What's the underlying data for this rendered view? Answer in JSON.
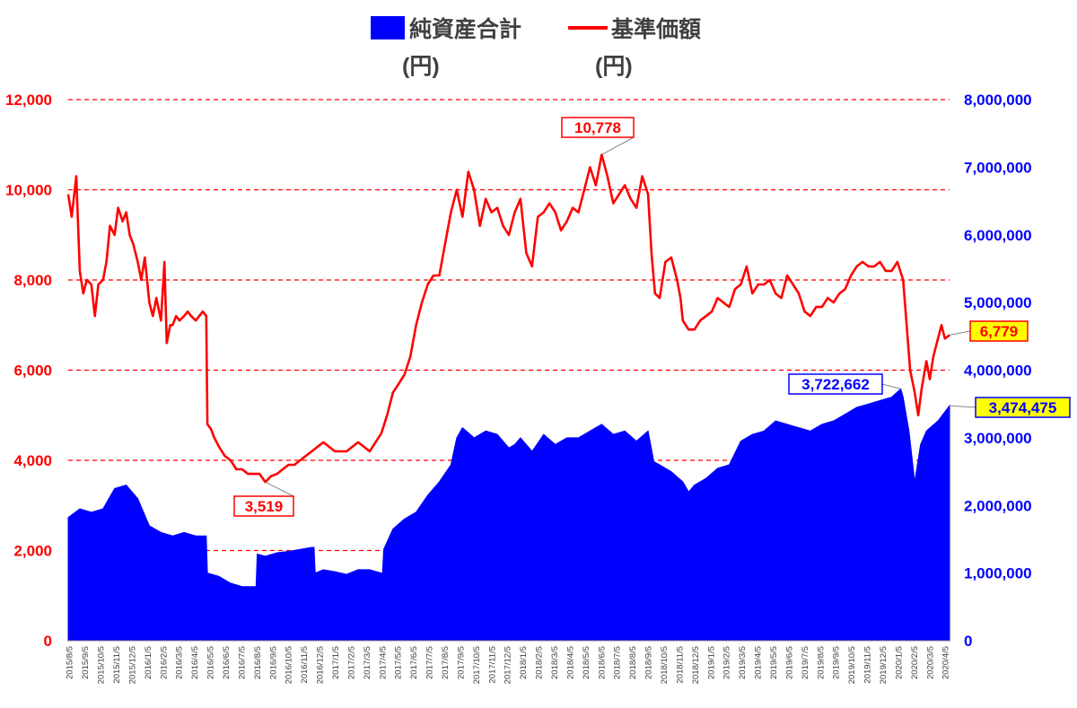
{
  "chart_data": {
    "type": "area+line",
    "legend": {
      "series_area": "純資産合計",
      "series_area_unit": "(円)",
      "series_line": "基準価額",
      "series_line_unit": "(円)",
      "placement": "top-center"
    },
    "y_left": {
      "min": 0,
      "max": 12000,
      "ticks": [
        "0",
        "2,000",
        "4,000",
        "6,000",
        "8,000",
        "10,000",
        "12,000"
      ],
      "tick_values": [
        0,
        2000,
        4000,
        6000,
        8000,
        10000,
        12000
      ]
    },
    "y_right": {
      "min": 0,
      "max": 8000000,
      "ticks": [
        "0",
        "1,000,000",
        "2,000,000",
        "3,000,000",
        "4,000,000",
        "5,000,000",
        "6,000,000",
        "7,000,000",
        "8,000,000"
      ],
      "tick_values": [
        0,
        1000000,
        2000000,
        3000000,
        4000000,
        5000000,
        6000000,
        7000000,
        8000000
      ]
    },
    "x_labels": [
      "2015/8/5",
      "2015/9/5",
      "2015/10/5",
      "2015/11/5",
      "2015/12/5",
      "2016/1/5",
      "2016/2/5",
      "2016/3/5",
      "2016/4/5",
      "2016/5/5",
      "2016/6/5",
      "2016/7/5",
      "2016/8/5",
      "2016/9/5",
      "2016/10/5",
      "2016/11/5",
      "2016/12/5",
      "2017/1/5",
      "2017/2/5",
      "2017/3/5",
      "2017/4/5",
      "2017/5/5",
      "2017/6/5",
      "2017/7/5",
      "2017/8/5",
      "2017/9/5",
      "2017/10/5",
      "2017/11/5",
      "2017/12/5",
      "2018/1/5",
      "2018/2/5",
      "2018/3/5",
      "2018/4/5",
      "2018/5/5",
      "2018/6/5",
      "2018/7/5",
      "2018/8/5",
      "2018/9/5",
      "2018/10/5",
      "2018/11/5",
      "2018/12/5",
      "2019/1/5",
      "2019/2/5",
      "2019/3/5",
      "2019/4/5",
      "2019/5/5",
      "2019/6/5",
      "2019/7/5",
      "2019/8/5",
      "2019/9/5",
      "2019/10/5",
      "2019/11/5",
      "2019/12/5",
      "2020/1/5",
      "2020/2/5",
      "2020/3/5",
      "2020/4/5"
    ],
    "nav_series": {
      "name": "基準価額",
      "color": "#ff0000",
      "points": [
        [
          0,
          9900
        ],
        [
          0.3,
          9400
        ],
        [
          0.7,
          10300
        ],
        [
          1,
          8200
        ],
        [
          1.3,
          7700
        ],
        [
          1.6,
          8000
        ],
        [
          2,
          7900
        ],
        [
          2.3,
          7200
        ],
        [
          2.6,
          7900
        ],
        [
          3,
          8000
        ],
        [
          3.3,
          8400
        ],
        [
          3.6,
          9200
        ],
        [
          4,
          9000
        ],
        [
          4.3,
          9600
        ],
        [
          4.7,
          9300
        ],
        [
          5,
          9500
        ],
        [
          5.3,
          9000
        ],
        [
          5.6,
          8800
        ],
        [
          6,
          8400
        ],
        [
          6.3,
          8000
        ],
        [
          6.6,
          8500
        ],
        [
          7,
          7500
        ],
        [
          7.3,
          7200
        ],
        [
          7.6,
          7600
        ],
        [
          8,
          7100
        ],
        [
          8.3,
          8400
        ],
        [
          8.5,
          6600
        ],
        [
          8.8,
          7000
        ],
        [
          9,
          7000
        ],
        [
          9.3,
          7200
        ],
        [
          9.6,
          7100
        ],
        [
          10,
          7200
        ],
        [
          10.3,
          7300
        ],
        [
          10.6,
          7200
        ],
        [
          11,
          7100
        ],
        [
          11.3,
          7200
        ],
        [
          11.6,
          7300
        ],
        [
          11.9,
          7200
        ],
        [
          12,
          4800
        ],
        [
          12.3,
          4700
        ],
        [
          12.6,
          4500
        ],
        [
          13,
          4300
        ],
        [
          13.5,
          4100
        ],
        [
          14,
          4000
        ],
        [
          14.5,
          3800
        ],
        [
          15,
          3800
        ],
        [
          15.5,
          3700
        ],
        [
          16,
          3700
        ],
        [
          16.5,
          3700
        ],
        [
          17,
          3519
        ],
        [
          17.5,
          3650
        ],
        [
          18,
          3700
        ],
        [
          18.5,
          3800
        ],
        [
          19,
          3900
        ],
        [
          19.5,
          3900
        ],
        [
          20,
          4000
        ],
        [
          20.5,
          4100
        ],
        [
          21,
          4200
        ],
        [
          21.5,
          4300
        ],
        [
          22,
          4400
        ],
        [
          22.5,
          4300
        ],
        [
          23,
          4200
        ],
        [
          23.5,
          4200
        ],
        [
          24,
          4200
        ],
        [
          24.5,
          4300
        ],
        [
          25,
          4400
        ],
        [
          25.5,
          4300
        ],
        [
          26,
          4200
        ],
        [
          26.5,
          4400
        ],
        [
          27,
          4600
        ],
        [
          27.5,
          5000
        ],
        [
          28,
          5500
        ],
        [
          28.5,
          5700
        ],
        [
          29,
          5900
        ],
        [
          29.5,
          6300
        ],
        [
          30,
          7000
        ],
        [
          30.5,
          7500
        ],
        [
          31,
          7900
        ],
        [
          31.5,
          8100
        ],
        [
          32,
          8100
        ],
        [
          32.5,
          8800
        ],
        [
          33,
          9500
        ],
        [
          33.5,
          10000
        ],
        [
          34,
          9400
        ],
        [
          34.5,
          10400
        ],
        [
          35,
          10000
        ],
        [
          35.5,
          9200
        ],
        [
          36,
          9800
        ],
        [
          36.5,
          9500
        ],
        [
          37,
          9600
        ],
        [
          37.5,
          9200
        ],
        [
          38,
          9000
        ],
        [
          38.5,
          9500
        ],
        [
          39,
          9800
        ],
        [
          39.5,
          8600
        ],
        [
          40,
          8300
        ],
        [
          40.5,
          9400
        ],
        [
          41,
          9500
        ],
        [
          41.5,
          9700
        ],
        [
          42,
          9500
        ],
        [
          42.5,
          9100
        ],
        [
          43,
          9300
        ],
        [
          43.5,
          9600
        ],
        [
          44,
          9500
        ],
        [
          44.5,
          10000
        ],
        [
          45,
          10500
        ],
        [
          45.5,
          10100
        ],
        [
          46,
          10778
        ],
        [
          46.5,
          10300
        ],
        [
          47,
          9700
        ],
        [
          47.5,
          9900
        ],
        [
          48,
          10100
        ],
        [
          48.5,
          9800
        ],
        [
          49,
          9600
        ],
        [
          49.5,
          10300
        ],
        [
          50,
          9900
        ],
        [
          50.3,
          8600
        ],
        [
          50.6,
          7700
        ],
        [
          51,
          7600
        ],
        [
          51.5,
          8400
        ],
        [
          52,
          8500
        ],
        [
          52.5,
          8000
        ],
        [
          52.8,
          7600
        ],
        [
          53,
          7100
        ],
        [
          53.5,
          6900
        ],
        [
          54,
          6900
        ],
        [
          54.5,
          7100
        ],
        [
          55,
          7200
        ],
        [
          55.5,
          7300
        ],
        [
          56,
          7600
        ],
        [
          56.5,
          7500
        ],
        [
          57,
          7400
        ],
        [
          57.5,
          7800
        ],
        [
          58,
          7900
        ],
        [
          58.5,
          8300
        ],
        [
          59,
          7700
        ],
        [
          59.5,
          7900
        ],
        [
          60,
          7900
        ],
        [
          60.5,
          8000
        ],
        [
          61,
          7700
        ],
        [
          61.5,
          7600
        ],
        [
          62,
          8100
        ],
        [
          62.5,
          7900
        ],
        [
          63,
          7700
        ],
        [
          63.5,
          7300
        ],
        [
          64,
          7200
        ],
        [
          64.5,
          7400
        ],
        [
          65,
          7400
        ],
        [
          65.5,
          7600
        ],
        [
          66,
          7500
        ],
        [
          66.5,
          7700
        ],
        [
          67,
          7800
        ],
        [
          67.5,
          8100
        ],
        [
          68,
          8300
        ],
        [
          68.5,
          8400
        ],
        [
          69,
          8300
        ],
        [
          69.5,
          8300
        ],
        [
          70,
          8400
        ],
        [
          70.5,
          8200
        ],
        [
          71,
          8200
        ],
        [
          71.5,
          8400
        ],
        [
          72,
          8000
        ],
        [
          72.3,
          7000
        ],
        [
          72.6,
          6000
        ],
        [
          73,
          5500
        ],
        [
          73.3,
          5000
        ],
        [
          73.6,
          5600
        ],
        [
          74,
          6200
        ],
        [
          74.3,
          5800
        ],
        [
          74.6,
          6300
        ],
        [
          75,
          6700
        ],
        [
          75.3,
          7000
        ],
        [
          75.6,
          6700
        ],
        [
          76,
          6779
        ]
      ]
    },
    "aum_series": {
      "name": "純資産合計",
      "color": "#0000ff",
      "points": [
        [
          0,
          1820000
        ],
        [
          1,
          1950000
        ],
        [
          2,
          1900000
        ],
        [
          3,
          1950000
        ],
        [
          4,
          2250000
        ],
        [
          5,
          2300000
        ],
        [
          6,
          2100000
        ],
        [
          7,
          1700000
        ],
        [
          8,
          1600000
        ],
        [
          9,
          1550000
        ],
        [
          10,
          1600000
        ],
        [
          11,
          1550000
        ],
        [
          11.9,
          1550000
        ],
        [
          12,
          1000000
        ],
        [
          13,
          950000
        ],
        [
          14,
          850000
        ],
        [
          15,
          800000
        ],
        [
          16,
          800000
        ],
        [
          16.2,
          800000
        ],
        [
          16.3,
          1280000
        ],
        [
          17,
          1250000
        ],
        [
          18,
          1300000
        ],
        [
          19,
          1320000
        ],
        [
          20,
          1350000
        ],
        [
          21,
          1380000
        ],
        [
          21.2,
          1380000
        ],
        [
          21.3,
          1000000
        ],
        [
          22,
          1050000
        ],
        [
          23,
          1020000
        ],
        [
          24,
          980000
        ],
        [
          25,
          1050000
        ],
        [
          26,
          1050000
        ],
        [
          27,
          1000000
        ],
        [
          27.1,
          1000000
        ],
        [
          27.2,
          1350000
        ],
        [
          28,
          1650000
        ],
        [
          29,
          1800000
        ],
        [
          30,
          1900000
        ],
        [
          31,
          2150000
        ],
        [
          32,
          2350000
        ],
        [
          33,
          2600000
        ],
        [
          33.5,
          3000000
        ],
        [
          34,
          3150000
        ],
        [
          35,
          3000000
        ],
        [
          36,
          3100000
        ],
        [
          37,
          3050000
        ],
        [
          38,
          2850000
        ],
        [
          38.5,
          2900000
        ],
        [
          39,
          3000000
        ],
        [
          40,
          2800000
        ],
        [
          41,
          3050000
        ],
        [
          42,
          2900000
        ],
        [
          43,
          3000000
        ],
        [
          44,
          3000000
        ],
        [
          45,
          3100000
        ],
        [
          46,
          3200000
        ],
        [
          47,
          3050000
        ],
        [
          48,
          3100000
        ],
        [
          49,
          2950000
        ],
        [
          50,
          3100000
        ],
        [
          50.5,
          2650000
        ],
        [
          51,
          2600000
        ],
        [
          52,
          2500000
        ],
        [
          53,
          2350000
        ],
        [
          53.5,
          2200000
        ],
        [
          54,
          2300000
        ],
        [
          55,
          2400000
        ],
        [
          56,
          2550000
        ],
        [
          57,
          2600000
        ],
        [
          58,
          2950000
        ],
        [
          59,
          3050000
        ],
        [
          60,
          3100000
        ],
        [
          61,
          3250000
        ],
        [
          62,
          3200000
        ],
        [
          63,
          3150000
        ],
        [
          64,
          3100000
        ],
        [
          65,
          3200000
        ],
        [
          66,
          3250000
        ],
        [
          67,
          3350000
        ],
        [
          68,
          3450000
        ],
        [
          69,
          3500000
        ],
        [
          70,
          3550000
        ],
        [
          71,
          3600000
        ],
        [
          71.8,
          3722662
        ],
        [
          72,
          3600000
        ],
        [
          72.5,
          3100000
        ],
        [
          73,
          2350000
        ],
        [
          73.5,
          2900000
        ],
        [
          74,
          3100000
        ],
        [
          75,
          3250000
        ],
        [
          76,
          3474475
        ]
      ]
    },
    "annotations": [
      {
        "label": "10,778",
        "series": "nav",
        "x": 46,
        "y": 10778,
        "style": "red-box"
      },
      {
        "label": "3,519",
        "series": "nav",
        "x": 17,
        "y": 3519,
        "style": "red-box"
      },
      {
        "label": "6,779",
        "series": "nav",
        "x": 76,
        "y": 6779,
        "style": "yellow-box-red-text"
      },
      {
        "label": "3,722,662",
        "series": "aum",
        "x": 71.8,
        "y": 3722662,
        "style": "blue-box"
      },
      {
        "label": "3,474,475",
        "series": "aum",
        "x": 76,
        "y": 3474475,
        "style": "yellow-box-blue-text"
      }
    ],
    "grid": {
      "style": "dashed",
      "color": "#ff0000",
      "lines_at_left_values": [
        2000,
        4000,
        6000,
        8000,
        10000,
        12000
      ]
    },
    "x_range": [
      0,
      76
    ]
  }
}
